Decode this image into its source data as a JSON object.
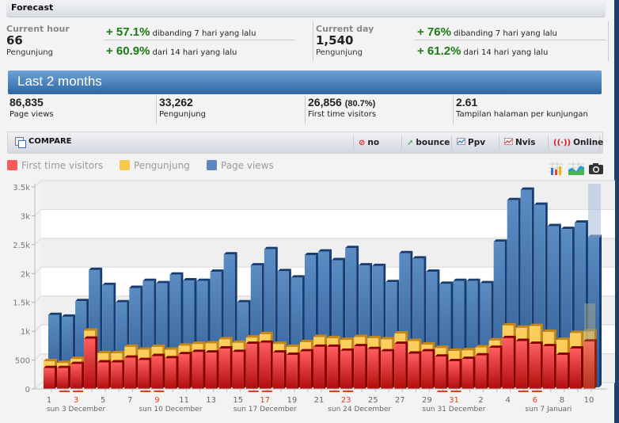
{
  "forecast": {
    "title": "Forecast",
    "current_hour": {
      "label": "Current hour",
      "value": "66",
      "unit": "Pengunjung",
      "changes": [
        {
          "pct": "+ 57.1%",
          "text": "dibanding 7 hari yang lalu"
        },
        {
          "pct": "+ 60.9%",
          "text": "dari 14 hari yang lalu"
        }
      ]
    },
    "current_day": {
      "label": "Current day",
      "value": "1,540",
      "unit": "Pengunjung",
      "changes": [
        {
          "pct": "+ 76%",
          "text": "dibanding 7 hari yang lalu"
        },
        {
          "pct": "+ 61.2%",
          "text": "dari 14 hari yang lalu"
        }
      ]
    }
  },
  "period": {
    "title": "Last 2 months",
    "stats": [
      {
        "value": "86,835",
        "extra": "",
        "label": "Page views"
      },
      {
        "value": "33,262",
        "extra": "",
        "label": "Pengunjung"
      },
      {
        "value": "26,856",
        "extra": "(80.7%)",
        "label": "First time visitors"
      },
      {
        "value": "2.61",
        "extra": "",
        "label": "Tampilan halaman per kunjungan"
      }
    ]
  },
  "toolbar": {
    "compare_label": "COMPARE",
    "buttons": [
      {
        "label": "no",
        "icon": "no-entry-icon"
      },
      {
        "label": "bounce",
        "icon": "bounce-arrow-icon"
      },
      {
        "label": "Ppv",
        "icon": "ppv-chart-icon"
      },
      {
        "label": "Nvis",
        "icon": "nvis-chart-icon"
      },
      {
        "label": "Online",
        "icon": "broadcast-icon"
      }
    ]
  },
  "colors": {
    "first_time": "#f25555",
    "pengunjung": "#f9c84f",
    "page_views": "#4f7fb7",
    "positive_change": "#1b7a13",
    "weekend_mark": "#e8391b"
  },
  "chart_data": {
    "type": "bar",
    "title": "Last 2 months",
    "legend": [
      "First time visitors",
      "Pengunjung",
      "Page views"
    ],
    "legend_position": "top-left",
    "ylim": [
      0,
      3500
    ],
    "yticks": [
      "0",
      "500",
      "1k",
      "1.5k",
      "2k",
      "2.5k",
      "3k",
      "3.5k"
    ],
    "ytick_values": [
      0,
      500,
      1000,
      1500,
      2000,
      2500,
      3000,
      3500
    ],
    "categories": [
      "1",
      "2",
      "3",
      "4",
      "5",
      "6",
      "7",
      "8",
      "9",
      "10",
      "11",
      "12",
      "13",
      "14",
      "15",
      "16",
      "17",
      "18",
      "19",
      "20",
      "21",
      "22",
      "23",
      "24",
      "25",
      "26",
      "27",
      "28",
      "29",
      "30",
      "31",
      "1",
      "2",
      "3",
      "4",
      "5",
      "6",
      "7",
      "8",
      "9",
      "10"
    ],
    "xtick_labels": [
      {
        "label": "1",
        "index": 0,
        "weekend": false
      },
      {
        "label": "3",
        "index": 2,
        "weekend": true
      },
      {
        "label": "5",
        "index": 4,
        "weekend": false
      },
      {
        "label": "7",
        "index": 6,
        "weekend": false
      },
      {
        "label": "9",
        "index": 8,
        "weekend": true
      },
      {
        "label": "11",
        "index": 10,
        "weekend": false
      },
      {
        "label": "13",
        "index": 12,
        "weekend": false
      },
      {
        "label": "15",
        "index": 14,
        "weekend": false
      },
      {
        "label": "17",
        "index": 16,
        "weekend": true
      },
      {
        "label": "19",
        "index": 18,
        "weekend": false
      },
      {
        "label": "21",
        "index": 20,
        "weekend": false
      },
      {
        "label": "23",
        "index": 22,
        "weekend": true
      },
      {
        "label": "25",
        "index": 24,
        "weekend": false
      },
      {
        "label": "27",
        "index": 26,
        "weekend": false
      },
      {
        "label": "29",
        "index": 28,
        "weekend": false
      },
      {
        "label": "31",
        "index": 30,
        "weekend": true
      },
      {
        "label": "2",
        "index": 32,
        "weekend": false
      },
      {
        "label": "4",
        "index": 34,
        "weekend": false
      },
      {
        "label": "6",
        "index": 36,
        "weekend": true
      },
      {
        "label": "8",
        "index": 38,
        "weekend": false
      },
      {
        "label": "10",
        "index": 40,
        "weekend": false
      }
    ],
    "weekend_indices": [
      1,
      2,
      7,
      8,
      15,
      16,
      21,
      22,
      29,
      30,
      35,
      36
    ],
    "week_labels": [
      {
        "label": "sun 3 December",
        "index": 2
      },
      {
        "label": "sun 10 December",
        "index": 9
      },
      {
        "label": "sun 17 December",
        "index": 16
      },
      {
        "label": "sun 24 December",
        "index": 23
      },
      {
        "label": "sun 31 December",
        "index": 30
      },
      {
        "label": "sun 7 Januari",
        "index": 37
      }
    ],
    "series": [
      {
        "name": "Page views",
        "values": [
          1280,
          1250,
          1520,
          2060,
          1800,
          1500,
          1750,
          1870,
          1830,
          1980,
          1880,
          1870,
          2030,
          2330,
          1500,
          2140,
          2420,
          2040,
          1930,
          2320,
          2380,
          2230,
          2440,
          2140,
          2130,
          1850,
          2350,
          2260,
          2030,
          1820,
          1870,
          1870,
          1830,
          2550,
          3270,
          3450,
          3190,
          2820,
          2770,
          2880,
          2630
        ]
      },
      {
        "name": "Pengunjung",
        "values": [
          480,
          450,
          520,
          1010,
          620,
          620,
          730,
          680,
          730,
          680,
          750,
          780,
          790,
          860,
          800,
          890,
          950,
          780,
          730,
          810,
          900,
          880,
          850,
          900,
          880,
          860,
          960,
          830,
          770,
          710,
          660,
          670,
          720,
          840,
          1100,
          1060,
          1090,
          990,
          850,
          970,
          1000
        ]
      },
      {
        "name": "First time visitors",
        "values": [
          360,
          360,
          430,
          870,
          460,
          460,
          540,
          500,
          570,
          530,
          600,
          640,
          630,
          700,
          640,
          780,
          800,
          630,
          590,
          650,
          730,
          730,
          660,
          740,
          690,
          650,
          780,
          610,
          650,
          560,
          480,
          520,
          580,
          710,
          880,
          830,
          780,
          740,
          590,
          700,
          820
        ]
      }
    ],
    "partial_last": true
  }
}
